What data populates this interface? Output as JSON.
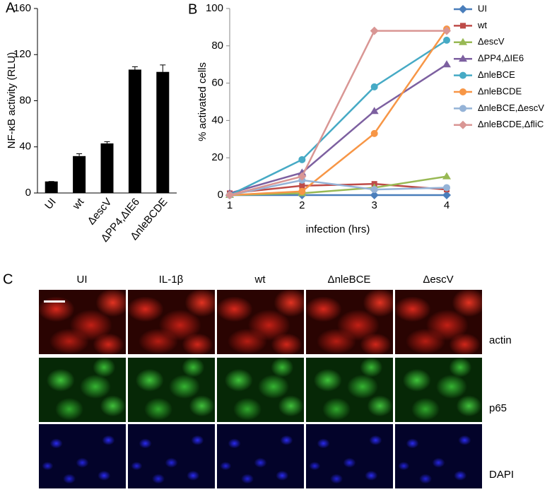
{
  "chart_data": [
    {
      "type": "bar",
      "panel_label": "A",
      "y_label": "NF-κB activity (RLU)",
      "categories": [
        "UI",
        "wt",
        "ΔescV",
        "ΔPP4,ΔIE6",
        "ΔnleBCDE"
      ],
      "values": [
        10,
        32,
        43,
        107,
        105
      ],
      "errors": [
        0,
        2,
        1.5,
        2.5,
        6
      ],
      "color": "#000000",
      "ylim": [
        0,
        160
      ],
      "yticks": [
        0,
        40,
        80,
        120,
        160
      ],
      "grid": false
    },
    {
      "type": "line",
      "panel_label": "B",
      "x_label": "infection (hrs)",
      "y_label": "% activated cells",
      "x": [
        1,
        2,
        3,
        4
      ],
      "xlim": [
        1,
        4
      ],
      "xticks": [
        1,
        2,
        3,
        4
      ],
      "ylim": [
        0,
        100
      ],
      "yticks": [
        0,
        20,
        40,
        60,
        80,
        100
      ],
      "grid": false,
      "legend": "right",
      "series": [
        {
          "name": "UI",
          "color": "#4a7ebb",
          "marker": "diamond",
          "values": [
            0,
            0,
            0,
            0
          ]
        },
        {
          "name": "wt",
          "color": "#be4b48",
          "marker": "square",
          "values": [
            1,
            5,
            6,
            3
          ]
        },
        {
          "name": "ΔescV",
          "color": "#98b954",
          "marker": "triangle",
          "values": [
            0,
            1,
            4,
            10
          ]
        },
        {
          "name": "ΔPP4,ΔIE6",
          "color": "#7d60a0",
          "marker": "triangle",
          "values": [
            1,
            12,
            45,
            70
          ]
        },
        {
          "name": "ΔnleBCE",
          "color": "#46aac5",
          "marker": "circle",
          "values": [
            0,
            19,
            58,
            83
          ]
        },
        {
          "name": "ΔnleBCDE",
          "color": "#f79646",
          "marker": "circle",
          "values": [
            0,
            2,
            33,
            89
          ]
        },
        {
          "name": "ΔnleBCE,ΔescV",
          "color": "#95b3d7",
          "marker": "circle",
          "values": [
            0,
            8,
            3,
            4
          ]
        },
        {
          "name": "ΔnleBCDE,ΔfliC",
          "color": "#d99694",
          "marker": "diamond",
          "values": [
            0,
            10,
            88,
            88
          ]
        }
      ]
    }
  ],
  "panel_c": {
    "label": "C",
    "columns": [
      "UI",
      "IL-1β",
      "wt",
      "ΔnleBCE",
      "ΔescV"
    ],
    "rows": [
      "actin",
      "p65",
      "DAPI"
    ]
  }
}
